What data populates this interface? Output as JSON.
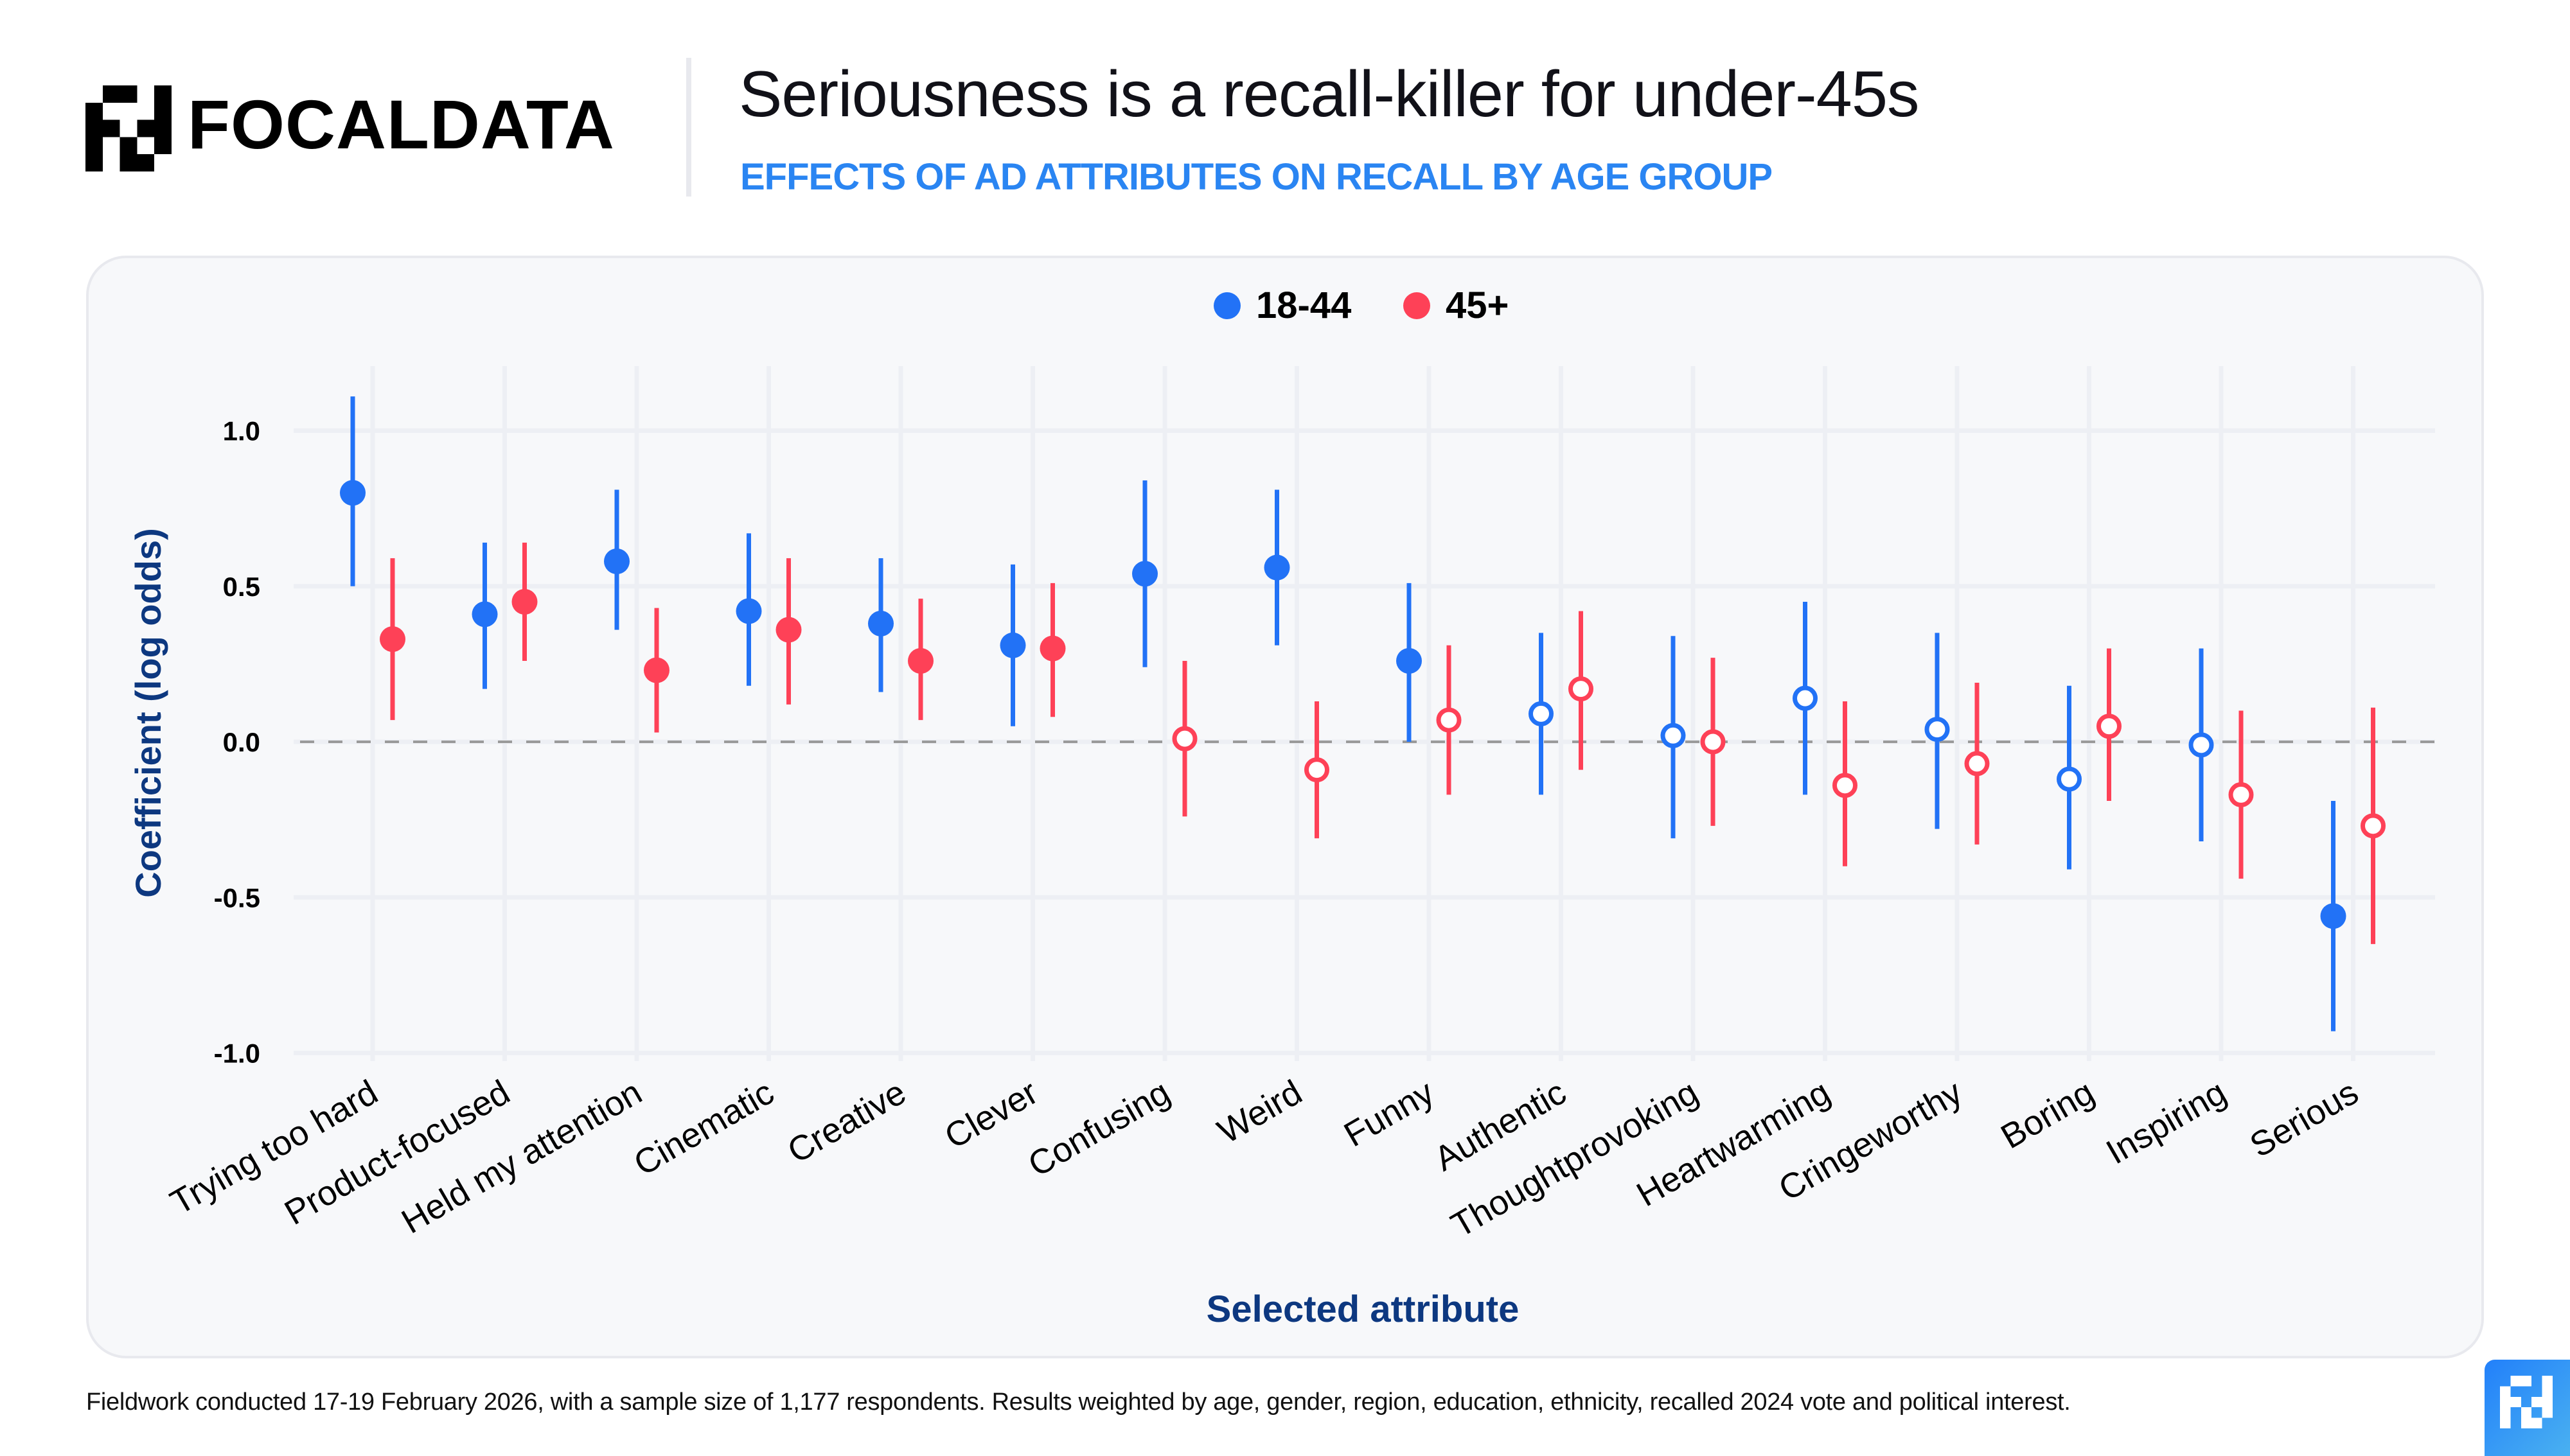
{
  "brand": {
    "name": "FOCALDATA",
    "logo_icon": "focaldata-pixel-logo-icon",
    "corner_logo_icon": "focaldata-pixel-logo-icon"
  },
  "header": {
    "title": "Seriousness is a recall-killer for under-45s",
    "subtitle": "EFFECTS OF AD ATTRIBUTES ON RECALL BY AGE GROUP"
  },
  "colors": {
    "series_18_44": "#2272F6",
    "series_45_plus": "#FE4157",
    "axis_title": "#0D3880",
    "subtitle": "#2A85F2",
    "zero_line": "#9A9A9A",
    "gridline": "#EDEFF4"
  },
  "legend": [
    {
      "label": "18-44",
      "color": "#2272F6"
    },
    {
      "label": "45+",
      "color": "#FE4157"
    }
  ],
  "chart_data": {
    "type": "scatter",
    "subtype": "point-range (coefficient with confidence interval)",
    "title": "Seriousness is a recall-killer for under-45s",
    "subtitle": "EFFECTS OF AD ATTRIBUTES ON RECALL BY AGE GROUP",
    "xlabel": "Selected attribute",
    "ylabel": "Coefficient (log odds)",
    "ylim": [
      -1.05,
      1.15
    ],
    "yticks": [
      1.0,
      0.5,
      0.0,
      -0.5,
      -1.0
    ],
    "ytick_labels": [
      "1.0",
      "0.5",
      "0.0",
      "-0.5",
      "-1.0"
    ],
    "reference_line": {
      "y": 0.0,
      "style": "dashed"
    },
    "grid": true,
    "legend_position": "top-center",
    "marker_note": "filled marker = interval excludes zero; hollow marker = interval includes zero",
    "categories": [
      "Trying too hard",
      "Product-focused",
      "Held my attention",
      "Cinematic",
      "Creative",
      "Clever",
      "Confusing",
      "Weird",
      "Funny",
      "Authentic",
      "Thoughtprovoking",
      "Heartwarming",
      "Cringeworthy",
      "Boring",
      "Inspiring",
      "Serious"
    ],
    "series": [
      {
        "name": "18-44",
        "color": "#2272F6",
        "values": [
          0.8,
          0.41,
          0.58,
          0.42,
          0.38,
          0.31,
          0.54,
          0.56,
          0.26,
          0.09,
          0.02,
          0.14,
          0.04,
          -0.12,
          -0.01,
          -0.56
        ],
        "lower": [
          0.5,
          0.17,
          0.36,
          0.18,
          0.16,
          0.05,
          0.24,
          0.31,
          0.0,
          -0.17,
          -0.31,
          -0.17,
          -0.28,
          -0.41,
          -0.32,
          -0.93
        ],
        "upper": [
          1.11,
          0.64,
          0.81,
          0.67,
          0.59,
          0.57,
          0.84,
          0.81,
          0.51,
          0.35,
          0.34,
          0.45,
          0.35,
          0.18,
          0.3,
          -0.19
        ],
        "significant": [
          true,
          true,
          true,
          true,
          true,
          true,
          true,
          true,
          true,
          false,
          false,
          false,
          false,
          false,
          false,
          true
        ]
      },
      {
        "name": "45+",
        "color": "#FE4157",
        "values": [
          0.33,
          0.45,
          0.23,
          0.36,
          0.26,
          0.3,
          0.01,
          -0.09,
          0.07,
          0.17,
          0.0,
          -0.14,
          -0.07,
          0.05,
          -0.17,
          -0.27
        ],
        "lower": [
          0.07,
          0.26,
          0.03,
          0.12,
          0.07,
          0.08,
          -0.24,
          -0.31,
          -0.17,
          -0.09,
          -0.27,
          -0.4,
          -0.33,
          -0.19,
          -0.44,
          -0.65
        ],
        "upper": [
          0.59,
          0.64,
          0.43,
          0.59,
          0.46,
          0.51,
          0.26,
          0.13,
          0.31,
          0.42,
          0.27,
          0.13,
          0.19,
          0.3,
          0.1,
          0.11
        ],
        "significant": [
          true,
          true,
          true,
          true,
          true,
          true,
          false,
          false,
          false,
          false,
          false,
          false,
          false,
          false,
          false,
          false
        ]
      }
    ]
  },
  "footer": {
    "note": "Fieldwork conducted 17-19 February 2026, with a sample size of 1,177 respondents. Results weighted by age, gender, region, education, ethnicity, recalled 2024 vote and political interest."
  }
}
